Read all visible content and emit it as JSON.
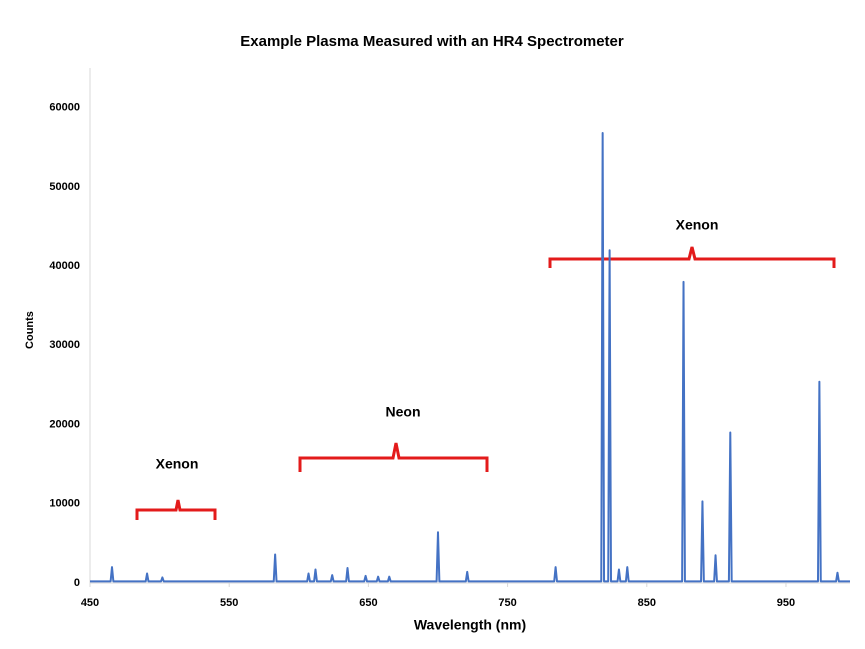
{
  "chart_data": {
    "type": "line",
    "title": "Example Plasma Measured with an  HR4 Spectrometer",
    "x_label": "Wavelength (nm)",
    "y_label": "Counts",
    "annotations": [
      "Xenon",
      "Neon",
      "Xenon"
    ],
    "x": [
      450,
      464.8,
      465.8,
      466.8,
      490,
      491,
      492,
      501,
      502,
      503,
      582,
      583,
      584,
      606,
      607,
      608,
      611,
      612,
      613,
      623,
      624,
      625,
      634,
      635,
      636,
      647,
      648,
      649,
      656,
      657,
      658,
      664,
      665,
      666,
      699,
      700,
      701,
      720,
      721,
      722,
      783.5,
      784.5,
      785.5,
      817.3,
      818.3,
      819.3,
      822.3,
      823.3,
      824.3,
      829,
      830,
      831,
      835,
      836,
      837,
      875.4,
      876.4,
      877.4,
      889,
      890,
      891,
      898.4,
      899.4,
      900.4,
      909,
      910,
      911,
      973,
      974,
      975,
      986,
      987,
      988,
      996
    ],
    "series": [
      {
        "color": "#4472c4",
        "values": [
          200,
          200,
          2000,
          200,
          200,
          1200,
          200,
          200,
          700,
          200,
          200,
          3600,
          200,
          200,
          1200,
          200,
          200,
          1700,
          200,
          200,
          1000,
          200,
          200,
          1900,
          200,
          200,
          900,
          200,
          200,
          800,
          200,
          200,
          800,
          200,
          200,
          6400,
          200,
          200,
          1400,
          200,
          200,
          2000,
          200,
          200,
          56800,
          200,
          200,
          42000,
          200,
          200,
          1700,
          200,
          200,
          2000,
          200,
          200,
          38000,
          200,
          200,
          10300,
          200,
          200,
          3500,
          200,
          200,
          19000,
          200,
          200,
          25400,
          200,
          200,
          1300,
          200,
          200
        ]
      }
    ],
    "xlim": [
      450,
      996
    ],
    "xticks": [
      450,
      550,
      650,
      750,
      850,
      950
    ],
    "ylim": [
      0,
      65000
    ],
    "yticks": [
      0,
      10000,
      20000,
      30000,
      40000,
      50000,
      60000
    ],
    "grid": false
  }
}
